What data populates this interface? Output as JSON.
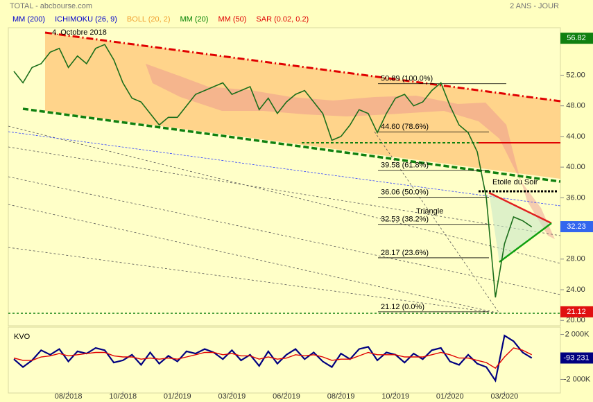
{
  "chart_data": {
    "type": "line",
    "title": "TOTAL - abcbourse.com",
    "subtitle": "2 ANS - JOUR",
    "legend": [
      {
        "name": "MM (200)",
        "color": "#0000cc"
      },
      {
        "name": "ICHIMOKU (26, 9)",
        "color": "#0000cc"
      },
      {
        "name": "BOLL (20, 2)",
        "color": "#f0a030"
      },
      {
        "name": "MM (20)",
        "color": "#008000"
      },
      {
        "name": "MM (50)",
        "color": "#e00000"
      },
      {
        "name": "SAR (0.02, 0.2)",
        "color": "#e00000"
      }
    ],
    "categories": [
      null,
      null,
      null,
      null,
      null,
      null,
      "08/2018",
      null,
      null,
      null,
      null,
      null,
      "10/2018",
      null,
      null,
      null,
      null,
      null,
      "01/2019",
      null,
      null,
      null,
      null,
      null,
      "03/2019",
      null,
      null,
      null,
      null,
      null,
      "06/2019",
      null,
      null,
      null,
      null,
      null,
      "08/2019",
      null,
      null,
      null,
      null,
      null,
      "10/2019",
      null,
      null,
      null,
      null,
      null,
      "01/2020",
      null,
      null,
      null,
      null,
      null,
      "03/2020",
      null,
      null,
      null
    ],
    "values": [
      52.5,
      51.0,
      53.0,
      53.5,
      55.0,
      55.5,
      53.0,
      54.5,
      53.5,
      55.5,
      56.0,
      54.0,
      51.0,
      49.0,
      48.5,
      47.0,
      45.5,
      46.5,
      46.5,
      48.0,
      49.5,
      50.0,
      50.5,
      51.0,
      49.5,
      50.0,
      50.5,
      47.5,
      49.0,
      47.0,
      48.5,
      49.5,
      50.0,
      48.5,
      47.0,
      43.5,
      44.0,
      45.5,
      47.5,
      47.0,
      44.5,
      47.0,
      49.0,
      49.5,
      48.0,
      48.5,
      50.0,
      51.0,
      48.0,
      45.5,
      44.5,
      42.0,
      36.0,
      23.0,
      30.0,
      33.5,
      33.0,
      32.2
    ],
    "color": "#1a6e1a",
    "ylim": [
      19.3,
      60
    ],
    "yticks": [
      {
        "value": 20,
        "label": "20.00"
      },
      {
        "value": 24,
        "label": "24.00"
      },
      {
        "value": 28,
        "label": "28.00"
      },
      {
        "value": 36,
        "label": "36.00"
      },
      {
        "value": 40,
        "label": "40.00"
      },
      {
        "value": 44,
        "label": "44.00"
      },
      {
        "value": 48,
        "label": "48.00"
      },
      {
        "value": 52,
        "label": "52.00"
      }
    ],
    "markers": [
      {
        "value": 56.82,
        "color": "#108010"
      },
      {
        "value": 32.23,
        "color": "#3366ee"
      },
      {
        "value": 21.12,
        "color": "#e01010"
      }
    ],
    "fibonacci": [
      {
        "value": 50.89,
        "label": "50.89  (100.0%)"
      },
      {
        "value": 44.6,
        "label": "44.60  (78.6%)"
      },
      {
        "value": 39.58,
        "label": "39.58  (61.8%)"
      },
      {
        "value": 36.06,
        "label": "36.06  (50.0%)"
      },
      {
        "value": 32.53,
        "label": "32.53  (38.2%)"
      },
      {
        "value": 28.17,
        "label": "28.17  (23.6%)"
      },
      {
        "value": 21.12,
        "label": "21.12  (0.0%)"
      }
    ],
    "annotations": [
      "4. Octobre 2018",
      "Etoile du Soir",
      "Triangle"
    ],
    "kvo": {
      "label": "KVO",
      "ylim": [
        -2650000,
        2650000
      ],
      "yticks": [
        {
          "value": 2000000,
          "label": "2 000K"
        },
        {
          "value": -2000000,
          "label": "-2 000K"
        }
      ],
      "last": {
        "value": -93231,
        "label": "-93 231"
      },
      "series": [
        {
          "color": "#000080",
          "values": [
            -200000,
            -900000,
            -300000,
            600000,
            200000,
            700000,
            -400000,
            500000,
            300000,
            800000,
            600000,
            -500000,
            -300000,
            200000,
            -700000,
            400000,
            -600000,
            100000,
            -400000,
            500000,
            300000,
            700000,
            400000,
            -200000,
            600000,
            -300000,
            200000,
            -800000,
            500000,
            -600000,
            200000,
            700000,
            -200000,
            400000,
            -400000,
            -900000,
            300000,
            -200000,
            700000,
            900000,
            -300000,
            400000,
            200000,
            -500000,
            300000,
            -200000,
            600000,
            800000,
            -400000,
            -700000,
            200000,
            -600000,
            -900000,
            -2100000,
            1900000,
            1400000,
            400000,
            -93231
          ]
        },
        {
          "color": "#e00000",
          "values": [
            -100000,
            -300000,
            -300000,
            0,
            100000,
            300000,
            100000,
            200000,
            300000,
            400000,
            400000,
            100000,
            0,
            0,
            -200000,
            -100000,
            -200000,
            -100000,
            -200000,
            0,
            200000,
            400000,
            400000,
            200000,
            300000,
            100000,
            100000,
            -200000,
            0,
            -200000,
            -100000,
            200000,
            100000,
            200000,
            0,
            -300000,
            -200000,
            -200000,
            100000,
            400000,
            200000,
            200000,
            200000,
            0,
            0,
            0,
            200000,
            400000,
            200000,
            -100000,
            -100000,
            -300000,
            -500000,
            -1000000,
            0,
            800000,
            600000,
            200000
          ]
        }
      ]
    }
  }
}
